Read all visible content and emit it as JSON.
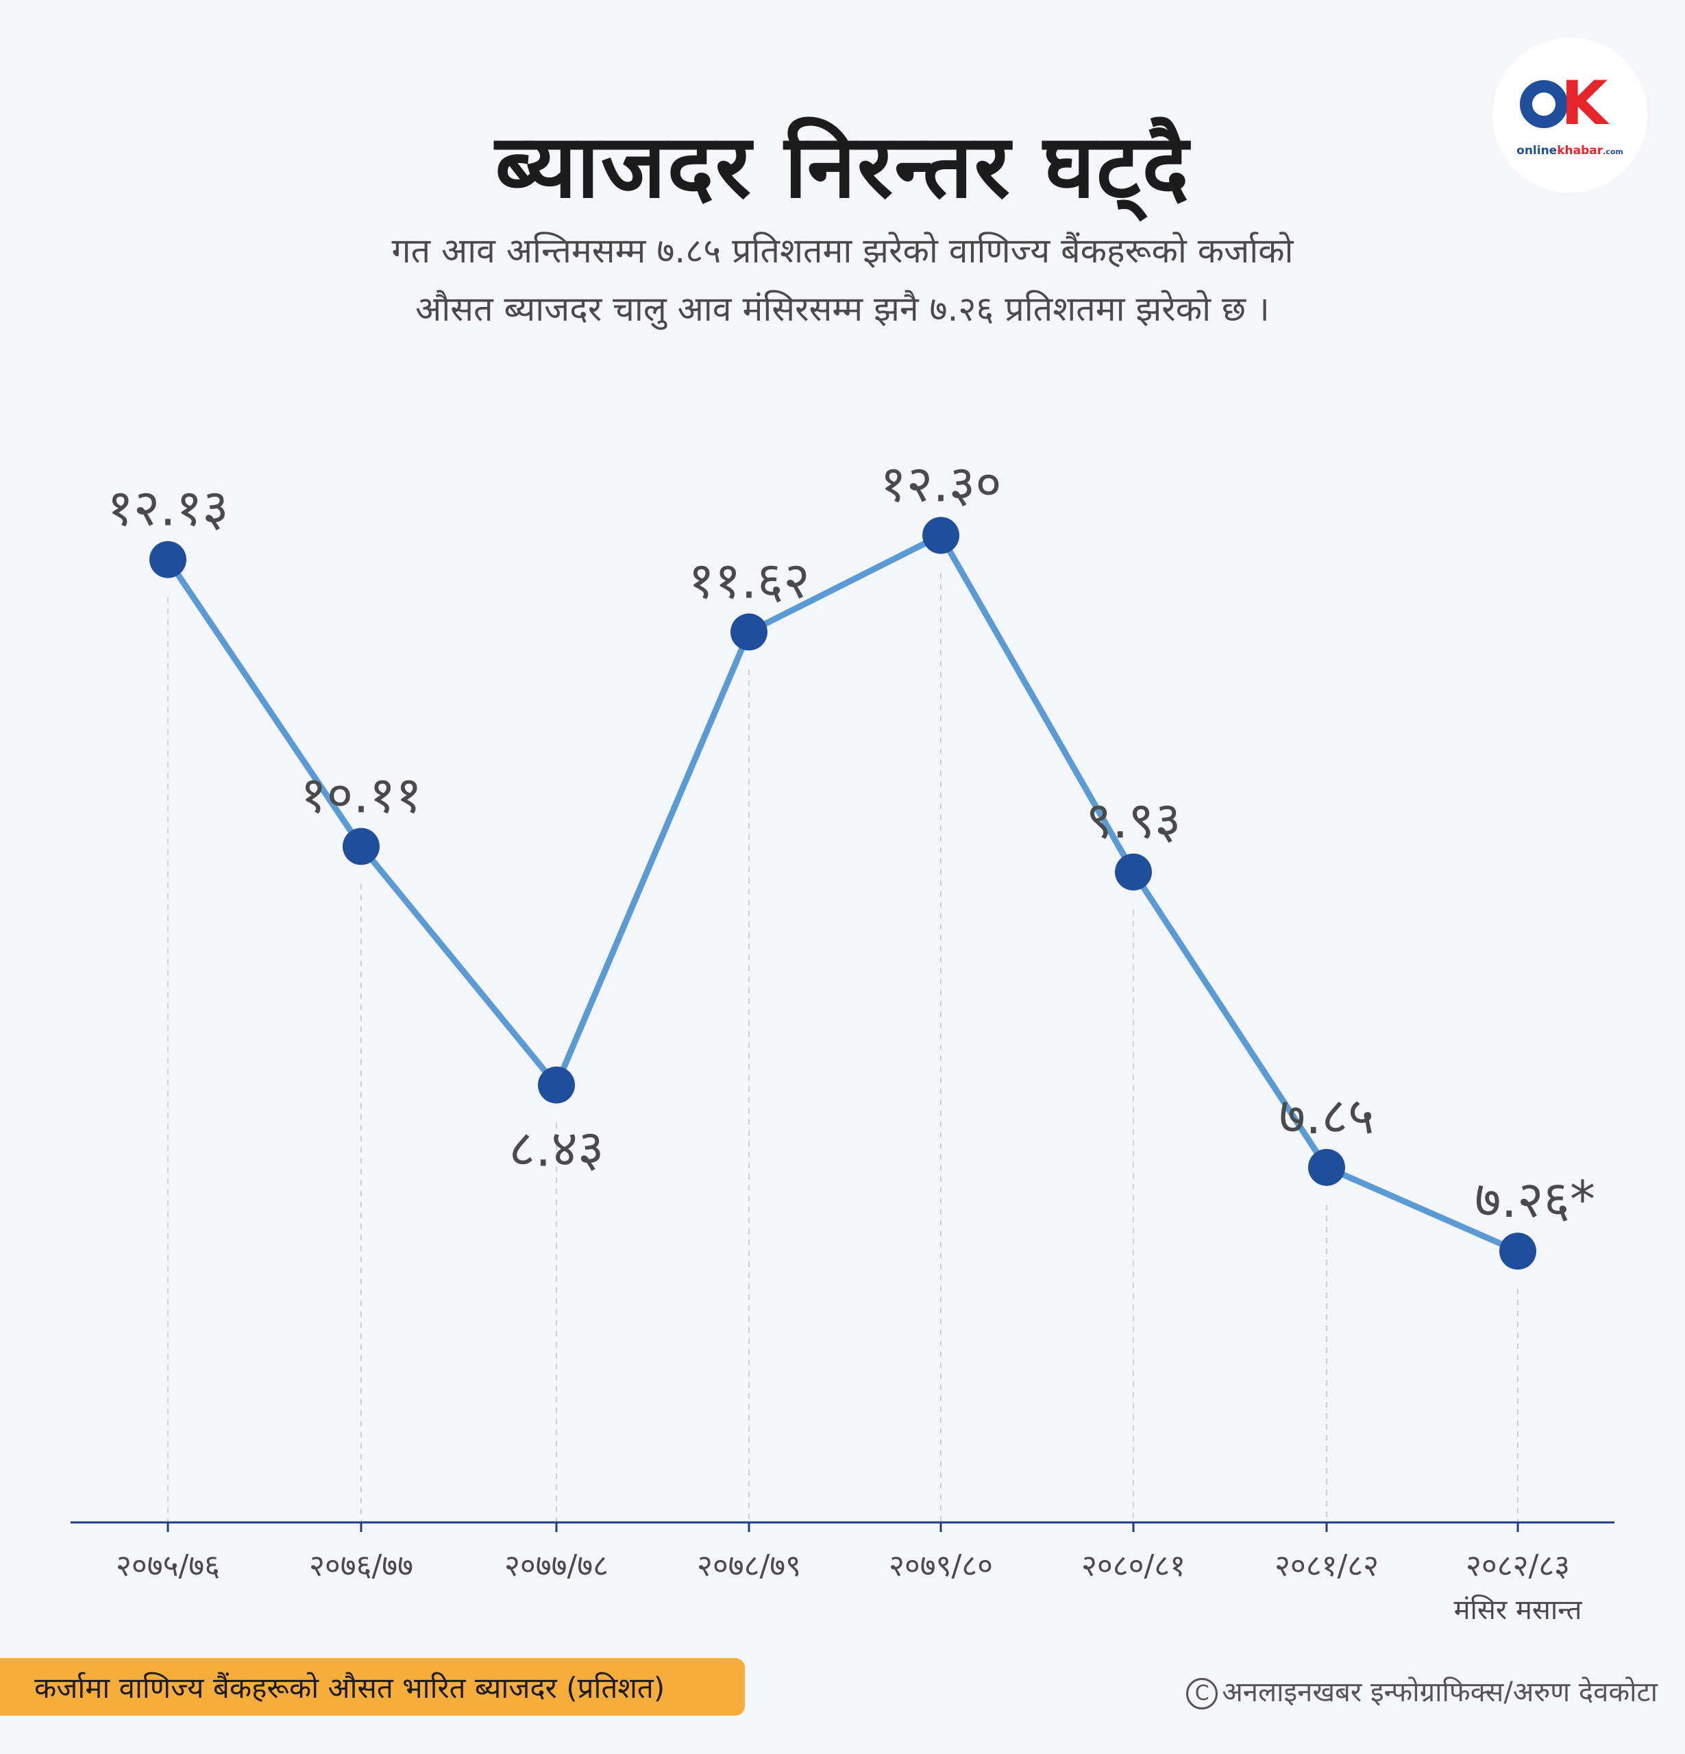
{
  "title": "ब्याजदर निरन्तर घट्दै",
  "subtitle_line1": "गत आव अन्तिमसम्म ७.८५ प्रतिशतमा झरेको वाणिज्य बैंकहरूको कर्जाको",
  "subtitle_line2": "औसत ब्याजदर चालु आव मंसिरसम्म झनै ७.२६ प्रतिशतमा झरेको छ ।",
  "logo": {
    "brand_main": "online",
    "brand_accent": "khabar",
    "brand_suffix": ".com",
    "accent_color": "#e5252a",
    "main_color": "#1f4e9c"
  },
  "legend_label": "कर्जामा वाणिज्य बैंकहरूको औसत भारित ब्याजदर  (प्रतिशत)",
  "credit": "अनलाइनखबर इन्फोग्राफिक्स/अरुण देवकोटा",
  "credit_symbol": "C",
  "chart_data": {
    "type": "line",
    "categories": [
      "२०७५/७६",
      "२०७६/७७",
      "२०७७/७८",
      "२०७८/७९",
      "२०७९/८०",
      "२०८०/८१",
      "२०८१/८२",
      "२०८२/८३"
    ],
    "category_notes": [
      "",
      "",
      "",
      "",
      "",
      "",
      "",
      "मंसिर  मसान्त"
    ],
    "values": [
      12.13,
      10.11,
      8.43,
      11.62,
      12.3,
      9.93,
      7.85,
      7.26
    ],
    "value_labels": [
      "१२.१३",
      "१०.११",
      "८.४३",
      "११.६२",
      "१२.३०",
      "९.९३",
      "७.८५",
      "७.२६*"
    ],
    "label_position": [
      "above",
      "above",
      "below",
      "above",
      "above",
      "above",
      "above",
      "above"
    ],
    "ylim": [
      5.35,
      12.5
    ],
    "line_color": "#5b9bd5",
    "marker_color": "#1f4e9c",
    "grid": "vertical dashed",
    "axis_color": "#1f3c88"
  }
}
